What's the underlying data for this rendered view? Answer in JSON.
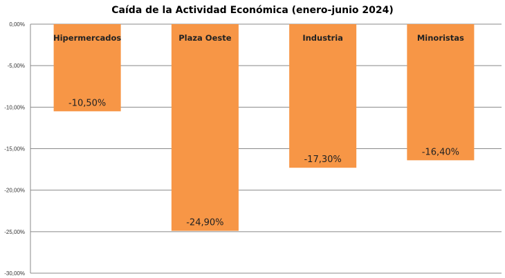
{
  "chart_data": {
    "type": "bar",
    "title": "Caída de la Actividad Económica (enero-junio 2024)",
    "categories": [
      "Hipermercados",
      "Plaza Oeste",
      "Industria",
      "Minoristas"
    ],
    "values": [
      -10.5,
      -24.9,
      -17.3,
      -16.4
    ],
    "data_labels": [
      "-10,50%",
      "-24,90%",
      "-17,30%",
      "-16,40%"
    ],
    "xlabel": "",
    "ylabel": "",
    "ylim": [
      -30,
      0
    ],
    "yticks": [
      0,
      -5,
      -10,
      -15,
      -20,
      -25,
      -30
    ],
    "ytick_labels": [
      "0,00%",
      "-5,00%",
      "-10,00%",
      "-15,00%",
      "-20,00%",
      "-25,00%",
      "-30,00%"
    ],
    "grid": true,
    "legend": "none",
    "bar_color": "#F79646"
  }
}
